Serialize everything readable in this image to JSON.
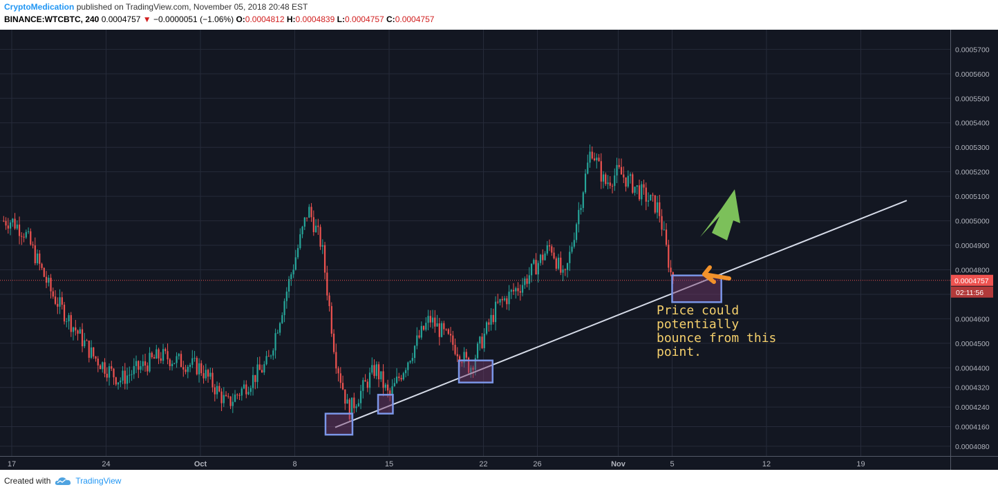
{
  "header": {
    "user": "CryptoMedication",
    "published": "published on TradingView.com, November 05, 2018 20:48 EST"
  },
  "quote": {
    "symbol": "BINANCE:WTCBTC, 240",
    "last": "0.0004757",
    "arrow": "▼",
    "change": "−0.0000051 (−1.06%)",
    "o_label": "O:",
    "o": "0.0004812",
    "h_label": "H:",
    "h": "0.0004839",
    "l_label": "L:",
    "l": "0.0004757",
    "c_label": "C:",
    "c": "0.0004757"
  },
  "colors": {
    "background": "#131722",
    "up": "#26a69a",
    "down": "#ef5350",
    "trendline": "#d6dbe8",
    "box_stroke": "#7b96e8",
    "green_arrow": "#7cc05a",
    "orange_arrow": "#f2922b",
    "annotation": "#f5d06c"
  },
  "chart_data": {
    "type": "candlestick",
    "symbol": "BINANCE:WTCBTC",
    "interval": "240",
    "ylim": [
      0.000404,
      0.000578
    ],
    "y_ticks": [
      "0.0004080",
      "0.0004160",
      "0.0004240",
      "0.0004320",
      "0.0004400",
      "0.0004500",
      "0.0004600",
      "0.0004700",
      "0.0004800",
      "0.0004900",
      "0.0005000",
      "0.0005100",
      "0.0005200",
      "0.0005300",
      "0.0005400",
      "0.0005500",
      "0.0005600",
      "0.0005700"
    ],
    "x_ticks": [
      "17",
      "24",
      "Oct",
      "8",
      "15",
      "22",
      "26",
      "Nov",
      "5",
      "12",
      "19"
    ],
    "anchors": [
      {
        "label": "Sep 17",
        "price": 0.0005
      },
      {
        "label": "Sep 18",
        "price": 0.000495
      },
      {
        "label": "Sep 20",
        "price": 0.00047
      },
      {
        "label": "Sep 23",
        "price": 0.000445
      },
      {
        "label": "Sep 25",
        "price": 0.000435
      },
      {
        "label": "Sep 28",
        "price": 0.000445
      },
      {
        "label": "Oct 1",
        "price": 0.00044
      },
      {
        "label": "Oct 3",
        "price": 0.000425
      },
      {
        "label": "Oct 6",
        "price": 0.000442
      },
      {
        "label": "Oct 9",
        "price": 0.000505
      },
      {
        "label": "Oct 10",
        "price": 0.00049
      },
      {
        "label": "Oct 11",
        "price": 0.000445
      },
      {
        "label": "Oct 12",
        "price": 0.000422
      },
      {
        "label": "Oct 14",
        "price": 0.00044
      },
      {
        "label": "Oct 15",
        "price": 0.000428
      },
      {
        "label": "Oct 17",
        "price": 0.00045
      },
      {
        "label": "Oct 18",
        "price": 0.00046
      },
      {
        "label": "Oct 20",
        "price": 0.000448
      },
      {
        "label": "Oct 21",
        "price": 0.00044
      },
      {
        "label": "Oct 23",
        "price": 0.000465
      },
      {
        "label": "Oct 25",
        "price": 0.000475
      },
      {
        "label": "Oct 27",
        "price": 0.00049
      },
      {
        "label": "Oct 28",
        "price": 0.000475
      },
      {
        "label": "Oct 30",
        "price": 0.00053
      },
      {
        "label": "Oct 31",
        "price": 0.000515
      },
      {
        "label": "Nov 1",
        "price": 0.00052
      },
      {
        "label": "Nov 2",
        "price": 0.000515
      },
      {
        "label": "Nov 4",
        "price": 0.000505
      },
      {
        "label": "Nov 5",
        "price": 0.0004757
      }
    ],
    "last_price": "0.0004757",
    "countdown": "02:11:56"
  },
  "annotation": {
    "lines": [
      "Price could",
      "potentially",
      "bounce from this",
      "point."
    ]
  },
  "footer": {
    "created_with": "Created with",
    "brand": "TradingView"
  }
}
